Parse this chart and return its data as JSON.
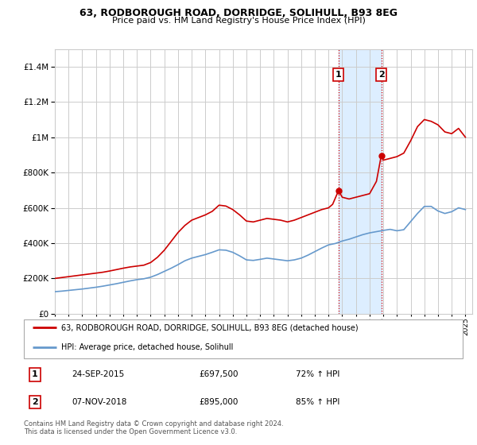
{
  "title": "63, RODBOROUGH ROAD, DORRIDGE, SOLIHULL, B93 8EG",
  "subtitle": "Price paid vs. HM Land Registry's House Price Index (HPI)",
  "red_label": "63, RODBOROUGH ROAD, DORRIDGE, SOLIHULL, B93 8EG (detached house)",
  "blue_label": "HPI: Average price, detached house, Solihull",
  "footer1": "Contains HM Land Registry data © Crown copyright and database right 2024.",
  "footer2": "This data is licensed under the Open Government Licence v3.0.",
  "transaction1": {
    "num": "1",
    "date": "24-SEP-2015",
    "price": "£697,500",
    "hpi": "72% ↑ HPI",
    "year": 2015.73
  },
  "transaction2": {
    "num": "2",
    "date": "07-NOV-2018",
    "price": "£895,000",
    "hpi": "85% ↑ HPI",
    "year": 2018.85
  },
  "red_color": "#cc0000",
  "blue_color": "#6699cc",
  "shade_color": "#ddeeff",
  "background_color": "#ffffff",
  "grid_color": "#cccccc",
  "red_data": {
    "years": [
      1995.0,
      1995.5,
      1996.0,
      1996.5,
      1997.0,
      1997.5,
      1998.0,
      1998.5,
      1999.0,
      1999.5,
      2000.0,
      2000.5,
      2001.0,
      2001.5,
      2002.0,
      2002.5,
      2003.0,
      2003.5,
      2004.0,
      2004.5,
      2005.0,
      2005.5,
      2006.0,
      2006.5,
      2007.0,
      2007.5,
      2008.0,
      2008.5,
      2009.0,
      2009.5,
      2010.0,
      2010.5,
      2011.0,
      2011.5,
      2012.0,
      2012.5,
      2013.0,
      2013.5,
      2014.0,
      2014.5,
      2015.0,
      2015.3,
      2015.73,
      2016.0,
      2016.5,
      2017.0,
      2017.5,
      2018.0,
      2018.5,
      2018.85,
      2019.0,
      2019.5,
      2020.0,
      2020.5,
      2021.0,
      2021.5,
      2022.0,
      2022.5,
      2023.0,
      2023.5,
      2024.0,
      2024.5,
      2025.0
    ],
    "values": [
      200000,
      205000,
      210000,
      215000,
      220000,
      225000,
      230000,
      235000,
      242000,
      250000,
      258000,
      265000,
      270000,
      275000,
      290000,
      320000,
      360000,
      410000,
      460000,
      500000,
      530000,
      545000,
      560000,
      580000,
      615000,
      610000,
      590000,
      560000,
      525000,
      520000,
      530000,
      540000,
      535000,
      530000,
      520000,
      530000,
      545000,
      560000,
      575000,
      590000,
      600000,
      620000,
      697500,
      660000,
      650000,
      660000,
      670000,
      680000,
      750000,
      895000,
      870000,
      880000,
      890000,
      910000,
      980000,
      1060000,
      1100000,
      1090000,
      1070000,
      1030000,
      1020000,
      1050000,
      1000000
    ]
  },
  "blue_data": {
    "years": [
      1995.0,
      1995.5,
      1996.0,
      1996.5,
      1997.0,
      1997.5,
      1998.0,
      1998.5,
      1999.0,
      1999.5,
      2000.0,
      2000.5,
      2001.0,
      2001.5,
      2002.0,
      2002.5,
      2003.0,
      2003.5,
      2004.0,
      2004.5,
      2005.0,
      2005.5,
      2006.0,
      2006.5,
      2007.0,
      2007.5,
      2008.0,
      2008.5,
      2009.0,
      2009.5,
      2010.0,
      2010.5,
      2011.0,
      2011.5,
      2012.0,
      2012.5,
      2013.0,
      2013.5,
      2014.0,
      2014.5,
      2015.0,
      2015.5,
      2016.0,
      2016.5,
      2017.0,
      2017.5,
      2018.0,
      2018.5,
      2019.0,
      2019.5,
      2020.0,
      2020.5,
      2021.0,
      2021.5,
      2022.0,
      2022.5,
      2023.0,
      2023.5,
      2024.0,
      2024.5,
      2025.0
    ],
    "values": [
      125000,
      128000,
      132000,
      136000,
      140000,
      145000,
      150000,
      156000,
      163000,
      170000,
      178000,
      186000,
      193000,
      198000,
      207000,
      222000,
      240000,
      258000,
      278000,
      300000,
      315000,
      325000,
      335000,
      348000,
      362000,
      360000,
      348000,
      328000,
      305000,
      302000,
      308000,
      315000,
      310000,
      305000,
      300000,
      305000,
      315000,
      332000,
      352000,
      372000,
      390000,
      398000,
      412000,
      422000,
      435000,
      448000,
      458000,
      465000,
      472000,
      478000,
      470000,
      476000,
      522000,
      568000,
      608000,
      608000,
      582000,
      568000,
      578000,
      600000,
      590000
    ]
  }
}
